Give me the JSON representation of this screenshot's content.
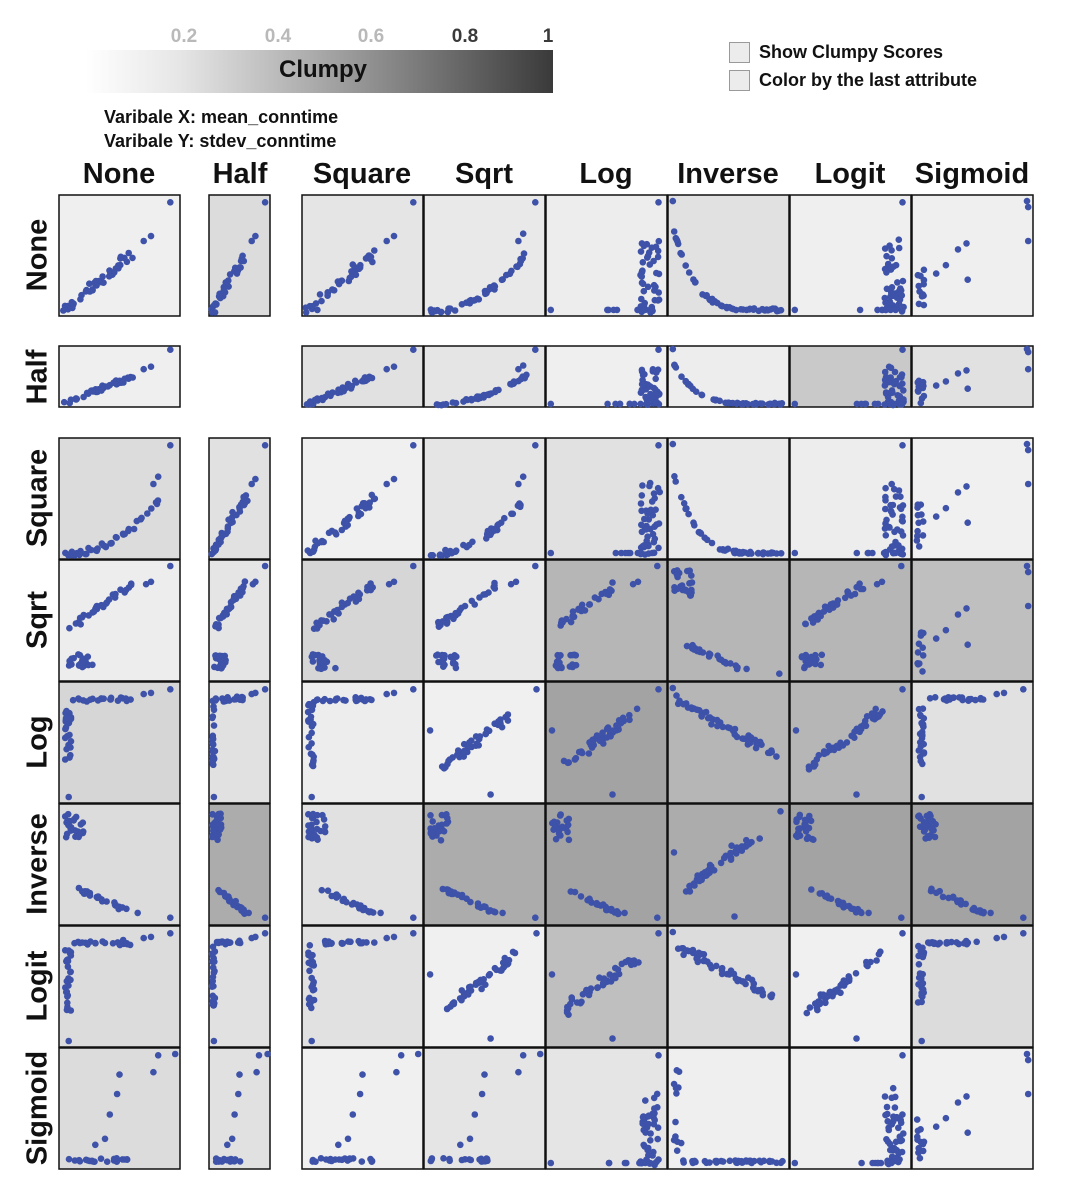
{
  "legend": {
    "ticks": [
      "0.2",
      "0.4",
      "0.6",
      "0.8",
      "1"
    ],
    "title": "Clumpy"
  },
  "options": {
    "show_clumpy_label": "Show Clumpy Scores",
    "show_clumpy_checked": false,
    "color_last_label": "Color by the last attribute",
    "color_last_checked": false
  },
  "variables": {
    "x_label": "Varibale X: mean_conntime",
    "y_label": "Varibale Y: stdev_conntime"
  },
  "colors": {
    "point": "#3d52a8",
    "border": "#111111"
  },
  "chart_data": {
    "type": "scatter",
    "title": "",
    "columns": [
      "None",
      "Half",
      "Square",
      "Sqrt",
      "Log",
      "Inverse",
      "Logit",
      "Sigmoid"
    ],
    "rows": [
      "None",
      "Half",
      "Square",
      "Sqrt",
      "Log",
      "Inverse",
      "Logit",
      "Sigmoid"
    ],
    "color_scale": {
      "label": "Clumpy",
      "range": [
        0,
        1
      ],
      "ticks": [
        0.2,
        0.4,
        0.6,
        0.8,
        1
      ]
    },
    "clumpy_scores": [
      [
        0.05,
        0.15,
        0.1,
        0.08,
        0.06,
        0.12,
        0.05,
        0.05
      ],
      [
        0.05,
        null,
        0.12,
        0.1,
        0.05,
        0.06,
        0.25,
        0.12
      ],
      [
        0.15,
        0.12,
        0.04,
        0.1,
        0.12,
        0.08,
        0.06,
        0.04
      ],
      [
        0.06,
        0.1,
        0.18,
        0.08,
        0.35,
        0.35,
        0.35,
        0.3
      ],
      [
        0.18,
        0.12,
        0.06,
        0.04,
        0.45,
        0.35,
        0.35,
        0.12
      ],
      [
        0.15,
        0.4,
        0.12,
        0.4,
        0.45,
        0.4,
        0.45,
        0.45
      ],
      [
        0.15,
        0.12,
        0.12,
        0.04,
        0.3,
        0.15,
        0.04,
        0.15
      ],
      [
        0.15,
        0.12,
        0.04,
        0.1,
        0.1,
        0.05,
        0.05,
        0.04
      ]
    ],
    "pattern_types": [
      [
        "linear",
        "linear",
        "linear",
        "convex",
        "steep",
        "inverse",
        "steep",
        "spread"
      ],
      [
        "linear",
        null,
        "linear",
        "convex",
        "steep",
        "inverse",
        "steep",
        "spread"
      ],
      [
        "convex",
        "linear",
        "linear",
        "convex",
        "steep",
        "inverse",
        "steep",
        "spread"
      ],
      [
        "split",
        "split",
        "split",
        "split",
        "split",
        "inverse_split",
        "split",
        "spread"
      ],
      [
        "concave",
        "concave",
        "concave",
        "cloud_up",
        "cloud_up",
        "cloud_down",
        "cloud_up",
        "concave"
      ],
      [
        "inverse_split",
        "inverse_split",
        "inverse_split",
        "inverse_split",
        "inverse_split",
        "cloud_up",
        "inverse_split",
        "inverse_split"
      ],
      [
        "concave",
        "concave",
        "concave",
        "cloud_up",
        "cloud_up",
        "cloud_down",
        "cloud_up",
        "concave"
      ],
      [
        "sigmoid",
        "sigmoid",
        "sigmoid",
        "sigmoid",
        "steep",
        "inverse_flat",
        "steep",
        "spread"
      ]
    ],
    "xlim": [
      0,
      1
    ],
    "ylim": [
      0,
      1
    ],
    "grid": false,
    "legend": "top-left"
  }
}
